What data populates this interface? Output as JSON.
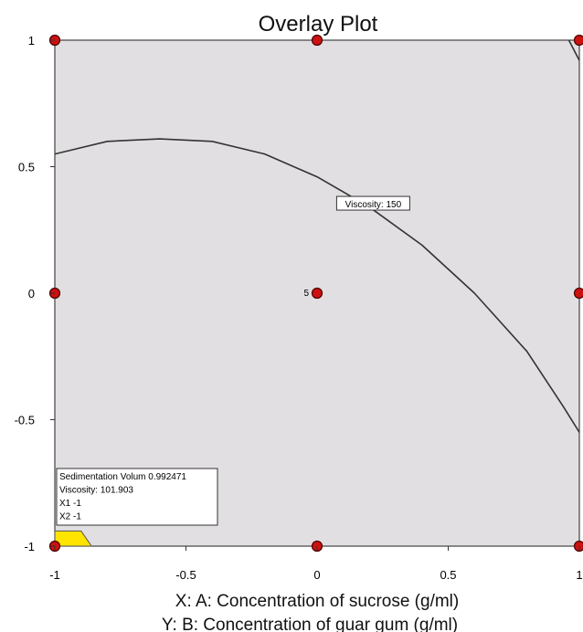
{
  "chart_data": {
    "type": "scatter",
    "title": "Overlay Plot",
    "xlabel": "X: A: Concentration of sucrose (g/ml)",
    "ylabel": "Y: B: Concentration of guar gum (g/ml)",
    "xlim": [
      -1,
      1
    ],
    "ylim": [
      -1,
      1
    ],
    "x_ticks": [
      "-1",
      "-0.5",
      "0",
      "0.5",
      "1"
    ],
    "y_ticks": [
      "-1",
      "-0.5",
      "0",
      "0.5",
      "1"
    ],
    "grid": false,
    "colors": {
      "plot_background": "#e2dfe2",
      "feasible_region": "#ffe400",
      "design_point": "#cc1111",
      "contour": "#333333"
    },
    "design_points": [
      {
        "x": -1,
        "y": 1
      },
      {
        "x": 0,
        "y": 1
      },
      {
        "x": 1,
        "y": 1
      },
      {
        "x": -1,
        "y": 0
      },
      {
        "x": 0,
        "y": 0,
        "label": "5"
      },
      {
        "x": 1,
        "y": 0
      },
      {
        "x": -1,
        "y": -1
      },
      {
        "x": 0,
        "y": -1
      },
      {
        "x": 1,
        "y": -1
      }
    ],
    "contours": [
      {
        "label": "Viscosity: 150",
        "points": [
          [
            -1,
            0.55
          ],
          [
            -0.8,
            0.6
          ],
          [
            -0.6,
            0.61
          ],
          [
            -0.4,
            0.6
          ],
          [
            -0.2,
            0.55
          ],
          [
            0,
            0.46
          ],
          [
            0.2,
            0.34
          ],
          [
            0.4,
            0.19
          ],
          [
            0.6,
            0.0
          ],
          [
            0.8,
            -0.23
          ],
          [
            0.94,
            -0.45
          ],
          [
            1,
            -0.55
          ]
        ]
      },
      {
        "label": "",
        "points": [
          [
            0.96,
            1
          ],
          [
            1,
            0.92
          ]
        ]
      }
    ],
    "feasible_region": [
      [
        -1,
        -1
      ],
      [
        -0.86,
        -1
      ],
      [
        -0.9,
        -0.94
      ],
      [
        -1,
        -0.94
      ]
    ],
    "flag": {
      "x": -1,
      "y": -1,
      "lines": [
        "Sedimentation Volum  0.992471",
        "Viscosity:   101.903",
        "X1  -1",
        "X2  -1"
      ]
    }
  }
}
